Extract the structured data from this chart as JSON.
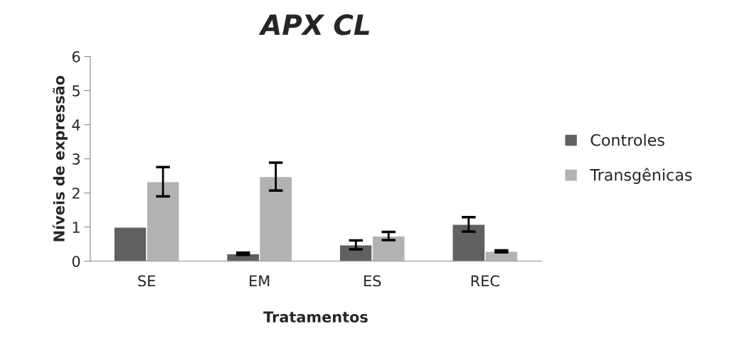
{
  "chart_data": {
    "type": "bar",
    "title": "APX CL",
    "xlabel": "Tratamentos",
    "ylabel": "Níveis de expressão",
    "categories": [
      "SE",
      "EM",
      "ES",
      "REC"
    ],
    "series": [
      {
        "name": "Controles",
        "color": "#606060",
        "values": [
          1.0,
          0.22,
          0.48,
          1.08
        ],
        "errors": [
          null,
          0.03,
          0.13,
          0.21
        ]
      },
      {
        "name": "Transgênicas",
        "color": "#b2b2b2",
        "values": [
          2.33,
          2.48,
          0.74,
          0.29
        ],
        "errors": [
          0.43,
          0.41,
          0.12,
          0.03
        ]
      }
    ],
    "ylim": [
      0,
      6
    ],
    "yticks": [
      0,
      1,
      2,
      3,
      4,
      5,
      6
    ],
    "grid": false,
    "legend": "right"
  }
}
